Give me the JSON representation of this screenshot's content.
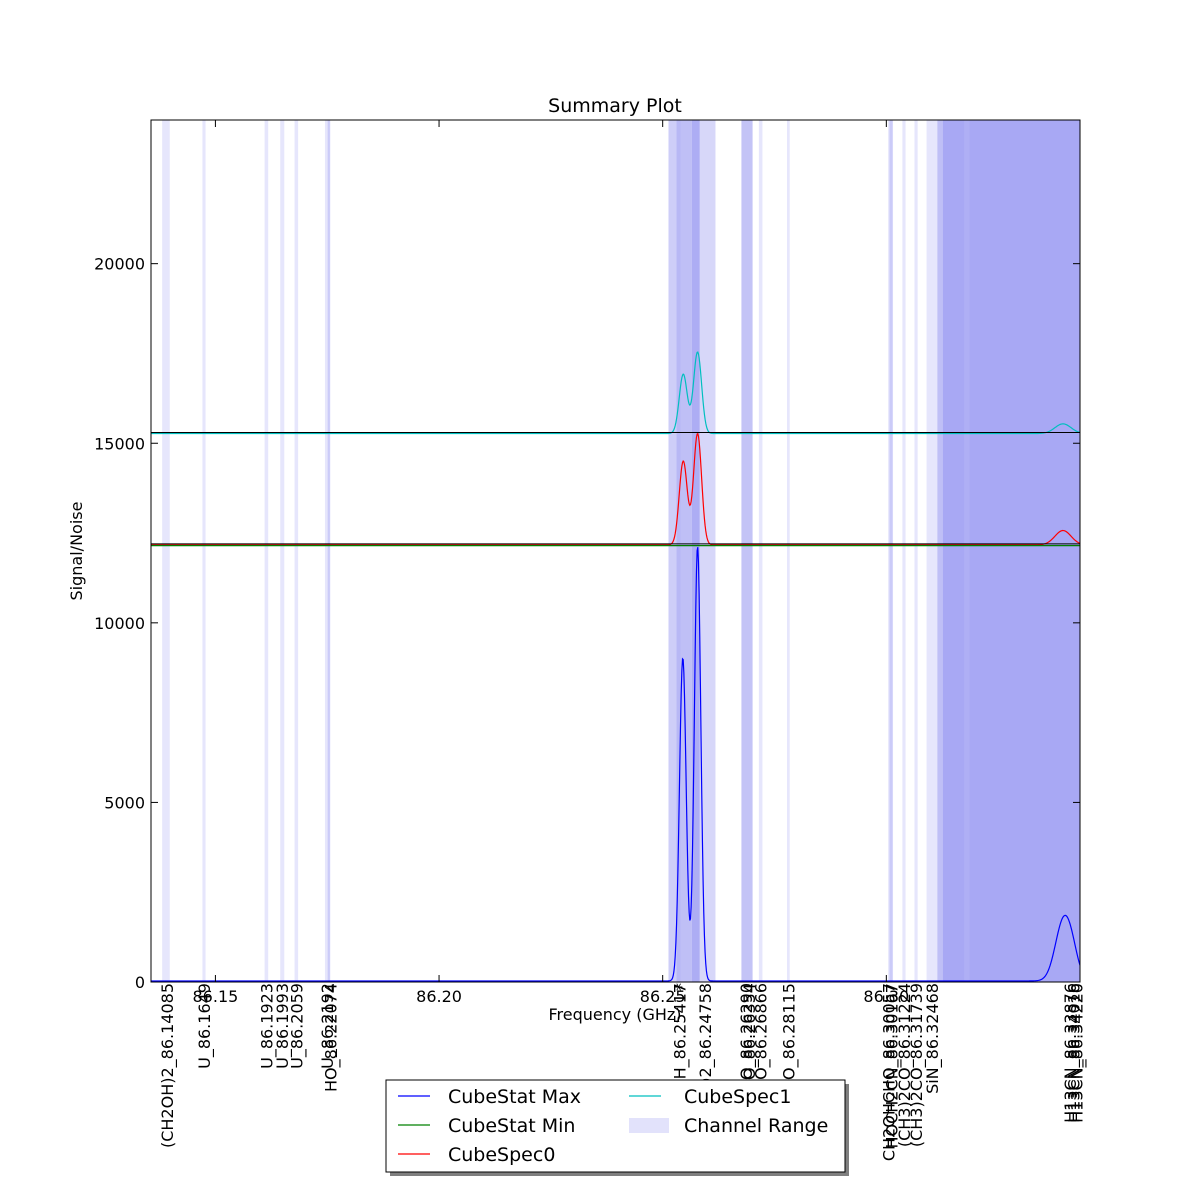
{
  "chart_data": {
    "type": "line",
    "title": "Summary Plot",
    "xlabel": "Frequency (GHz)",
    "ylabel": "Signal/Noise",
    "xlim": [
      86.1356,
      86.3433
    ],
    "ylim": [
      0,
      24000
    ],
    "x_ticks": [
      86.15,
      86.2,
      86.25,
      86.3
    ],
    "x_tick_labels": [
      "86.15",
      "86.20",
      "86.25",
      "86.30"
    ],
    "y_ticks": [
      0,
      5000,
      10000,
      15000,
      20000
    ],
    "y_tick_labels": [
      "0",
      "5000",
      "10000",
      "15000",
      "20000"
    ],
    "grid": false,
    "legend_position": "bottom-center",
    "legend": [
      "CubeStat Max",
      "CubeStat Min",
      "CubeSpec0",
      "CubeSpec1",
      "Channel Range"
    ],
    "series": [
      {
        "name": "CubeStat Max",
        "color": "#0000ff",
        "baseline": 30,
        "peaks": [
          {
            "center": 86.2545,
            "height": 9000,
            "width": 0.00075
          },
          {
            "center": 86.2578,
            "height": 12100,
            "width": 0.00072
          },
          {
            "center": 86.3395,
            "height": 1550,
            "width": 0.0018
          },
          {
            "center": 86.3415,
            "height": 550,
            "width": 0.0015
          }
        ]
      },
      {
        "name": "CubeStat Min",
        "color": "#008000",
        "baseline": 12150,
        "peaks": []
      },
      {
        "name": "CubeSpec0",
        "color": "#ff0000",
        "baseline": 12170,
        "peaks": [
          {
            "center": 86.2546,
            "height": 2330,
            "width": 0.0009
          },
          {
            "center": 86.2578,
            "height": 3100,
            "width": 0.0009
          },
          {
            "center": 86.3395,
            "height": 400,
            "width": 0.0018
          }
        ]
      },
      {
        "name": "CubeSpec1",
        "color": "#00bfbf",
        "baseline": 15270,
        "peaks": [
          {
            "center": 86.2546,
            "height": 1650,
            "width": 0.0009
          },
          {
            "center": 86.2578,
            "height": 2270,
            "width": 0.0009
          },
          {
            "center": 86.3395,
            "height": 270,
            "width": 0.0018
          }
        ]
      }
    ],
    "horizontal_lines": [
      {
        "y": 12200,
        "color": "#000000"
      },
      {
        "y": 15300,
        "color": "#000000"
      }
    ],
    "channel_ranges": [
      {
        "range": [
          86.1381,
          86.1398
        ],
        "color": "#e2e2fb"
      },
      {
        "range": [
          86.1471,
          86.1478
        ],
        "color": "#e2e2fb"
      },
      {
        "range": [
          86.161,
          86.1618
        ],
        "color": "#e2e2fb"
      },
      {
        "range": [
          86.1645,
          86.1654
        ],
        "color": "#e2e2fb"
      },
      {
        "range": [
          86.1677,
          86.1685
        ],
        "color": "#e2e2fb"
      },
      {
        "range": [
          86.1745,
          86.1757
        ],
        "color": "#e2e2fb"
      },
      {
        "range": [
          86.1751,
          86.1756
        ],
        "color": "#c5c5f7"
      },
      {
        "range": [
          86.2513,
          86.254
        ],
        "color": "#c5c5f7"
      },
      {
        "range": [
          86.2531,
          86.2565
        ],
        "color": "#b4b4f4"
      },
      {
        "range": [
          86.2565,
          86.2583
        ],
        "color": "#9f9ff2"
      },
      {
        "range": [
          86.2583,
          86.2618
        ],
        "color": "#d0d0f8"
      },
      {
        "range": [
          86.2676,
          86.2701
        ],
        "color": "#b8b8f5"
      },
      {
        "range": [
          86.2715,
          86.2723
        ],
        "color": "#e2e2fb"
      },
      {
        "range": [
          86.2778,
          86.2784
        ],
        "color": "#e2e2fb"
      },
      {
        "range": [
          86.3004,
          86.3015
        ],
        "color": "#e2e2fb"
      },
      {
        "range": [
          86.3007,
          86.3014
        ],
        "color": "#c5c5f7"
      },
      {
        "range": [
          86.3036,
          86.3043
        ],
        "color": "#e2e2fb"
      },
      {
        "range": [
          86.3063,
          86.307
        ],
        "color": "#e2e2fb"
      },
      {
        "range": [
          86.309,
          86.3114
        ],
        "color": "#e2e2fb"
      },
      {
        "range": [
          86.3114,
          86.3126
        ],
        "color": "#b4b4f4"
      },
      {
        "range": [
          86.3126,
          86.3433
        ],
        "color": "#9999f2"
      },
      {
        "range": [
          86.3174,
          86.3186
        ],
        "color": "#b0b0f4"
      }
    ],
    "line_labels": [
      {
        "x": 86.1392,
        "text": "(CH2OH)2_86.14085"
      },
      {
        "x": 86.1475,
        "text": "U_86.1649"
      },
      {
        "x": 86.1614,
        "text": "U_86.1923"
      },
      {
        "x": 86.1649,
        "text": "U_86.1993"
      },
      {
        "x": 86.1681,
        "text": "U_86.2059"
      },
      {
        "x": 86.175,
        "text": "U_86.2192"
      },
      {
        "x": 86.1757,
        "text": "HO_86.22074"
      },
      {
        "x": 86.2538,
        "text": "H_86.25417"
      },
      {
        "x": 86.254,
        "text": "*"
      },
      {
        "x": 86.2595,
        "text": "H)2_86.24758"
      },
      {
        "x": 86.2686,
        "text": "O_86.26290"
      },
      {
        "x": 86.2693,
        "text": "O_86.26354"
      },
      {
        "x": 86.2719,
        "text": "HO_86.26866"
      },
      {
        "x": 86.2781,
        "text": "CO_86.28115"
      },
      {
        "x": 86.3005,
        "text": "CH2OHCHO_86.30057"
      },
      {
        "x": 86.3011,
        "text": "HOCH2CN_86.30167"
      },
      {
        "x": 86.304,
        "text": "(CH3)2CO_86.31224"
      },
      {
        "x": 86.3066,
        "text": "(CH3)2CO_86.31739"
      },
      {
        "x": 86.3102,
        "text": "SiN_86.32468"
      },
      {
        "x": 86.3411,
        "text": "H13CN_86.33876"
      },
      {
        "x": 86.3418,
        "text": "H13CN_86.34016"
      },
      {
        "x": 86.3425,
        "text": "H13CN_86.34220"
      }
    ]
  }
}
